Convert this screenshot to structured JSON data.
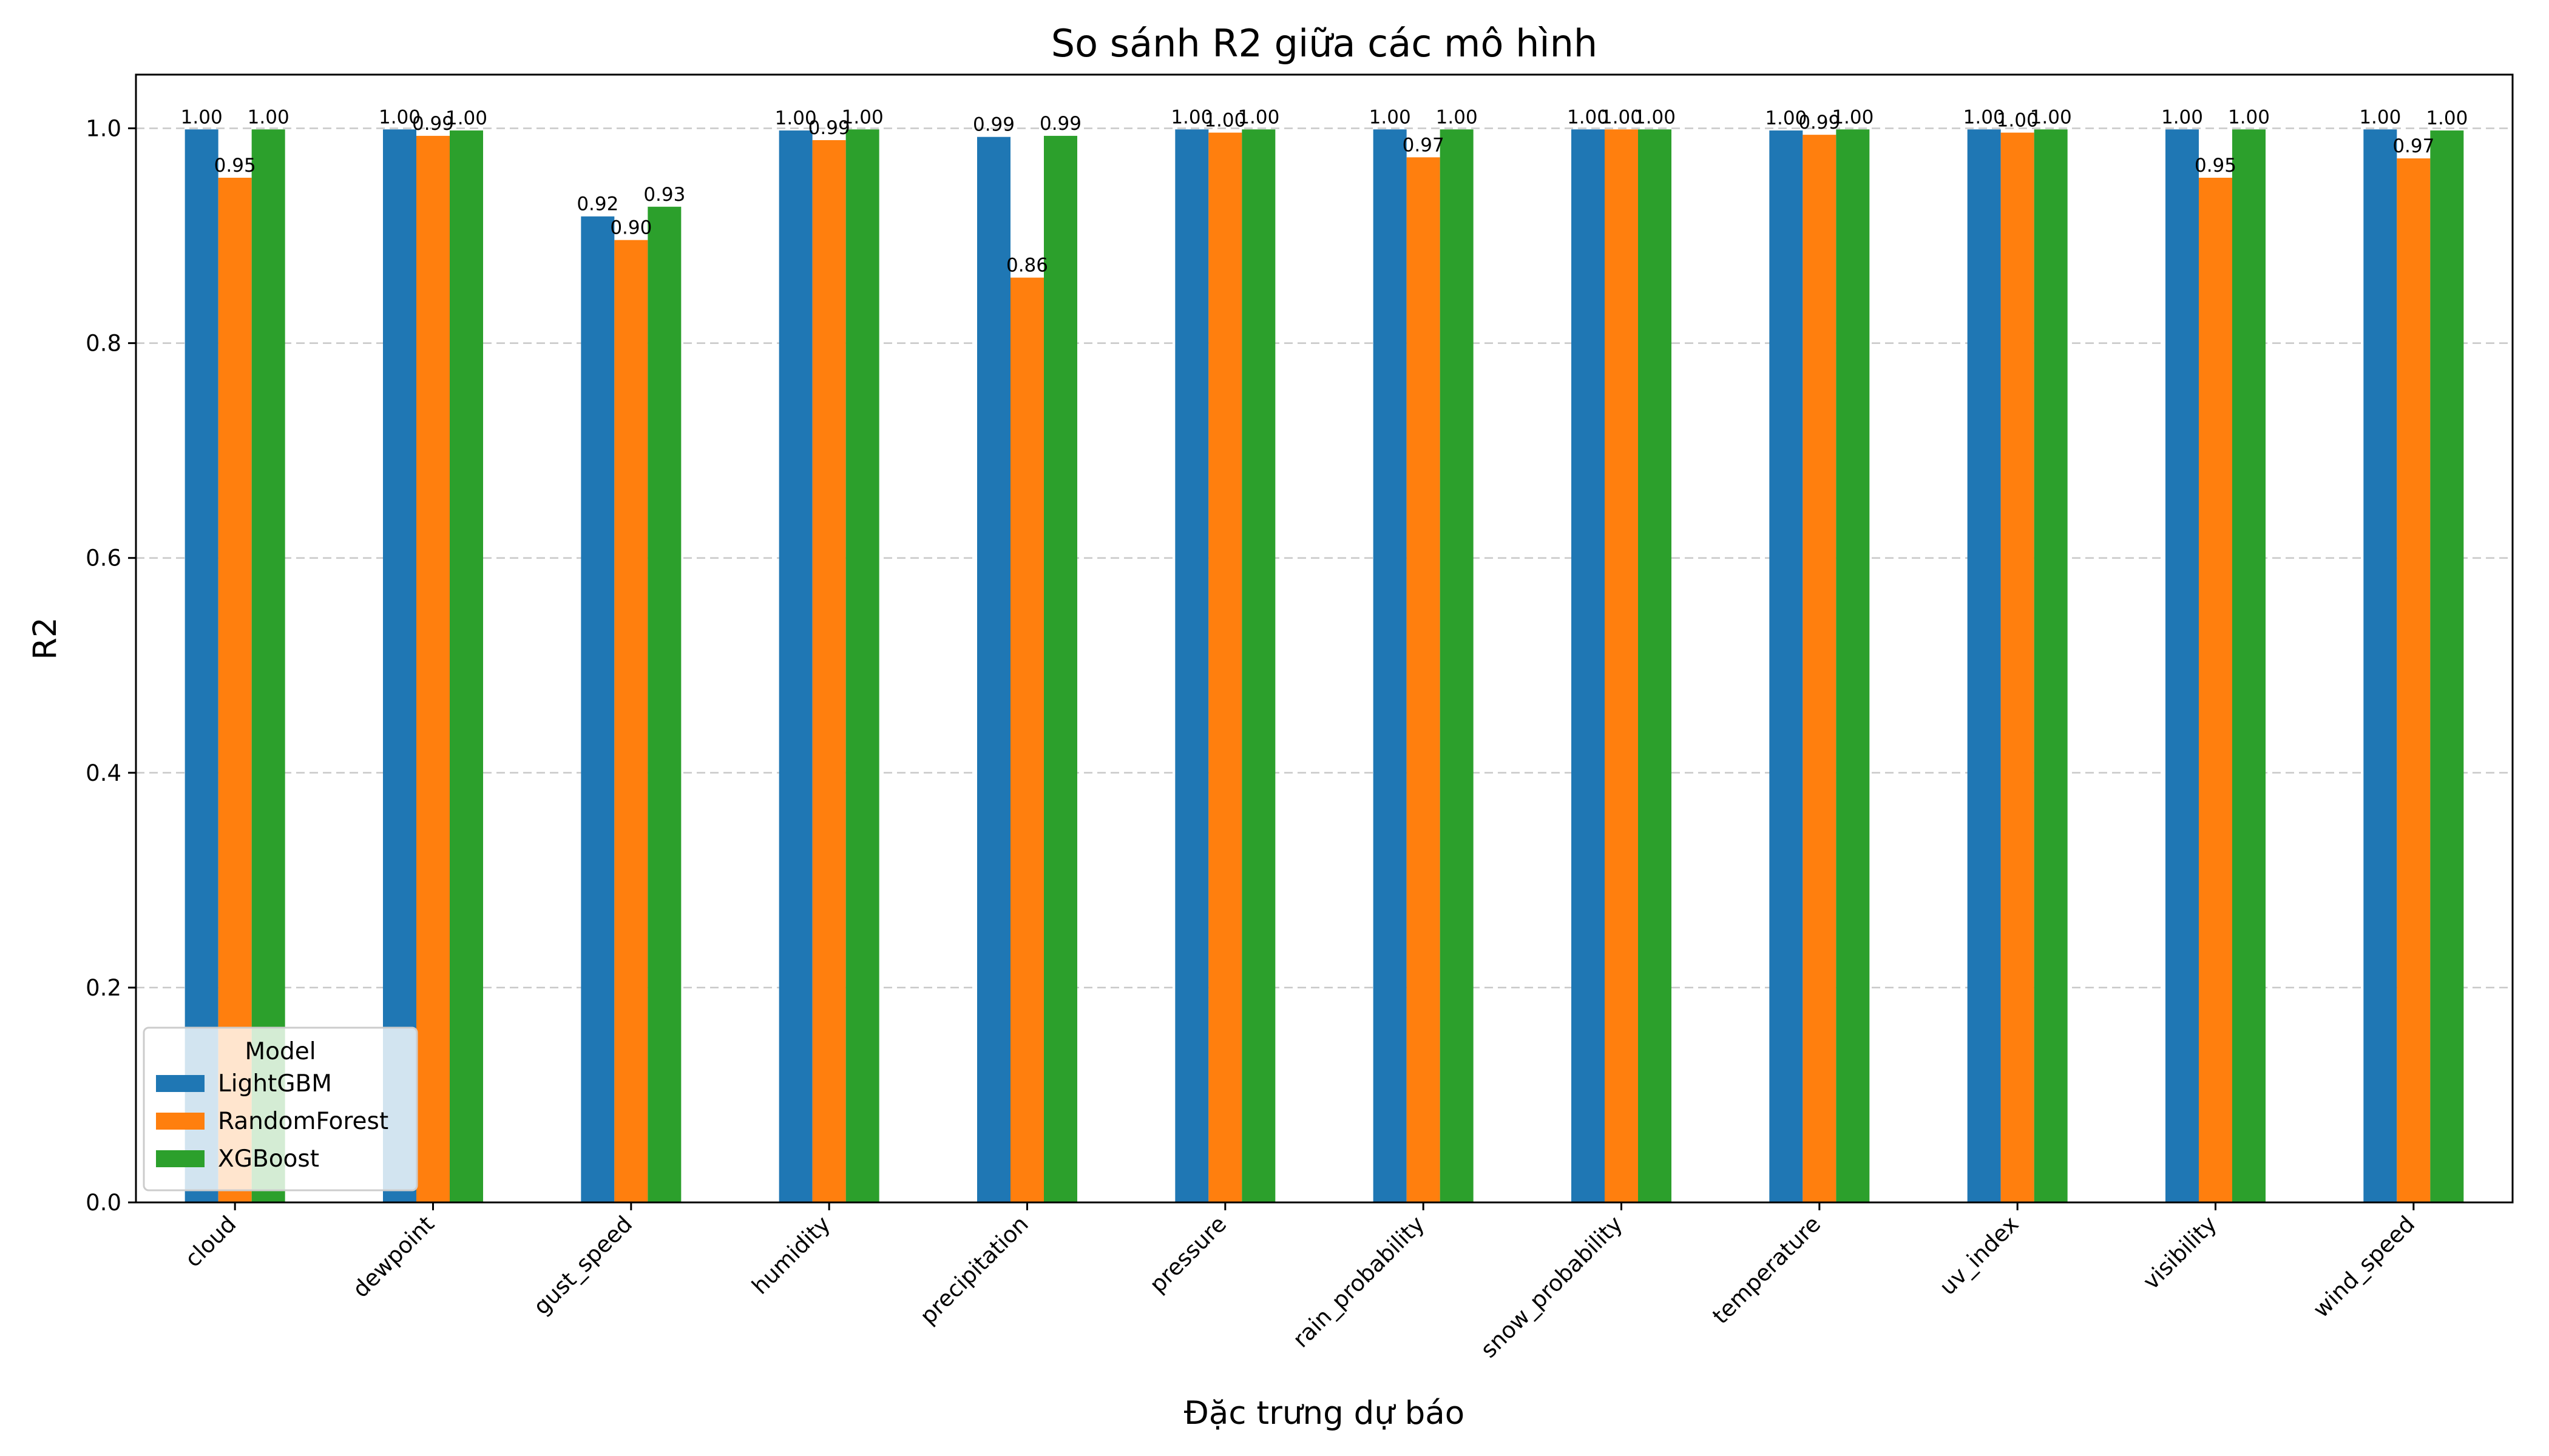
{
  "chart_data": {
    "type": "bar",
    "title": "So sánh R2 giữa các mô hình",
    "xlabel": "Đặc trưng dự báo",
    "ylabel": "R2",
    "ylim": [
      0,
      1.05
    ],
    "yticks": [
      "0.0",
      "0.2",
      "0.4",
      "0.6",
      "0.8",
      "1.0"
    ],
    "grid": "horizontal dashed",
    "legend_title": "Model",
    "legend_position": "lower-left",
    "categories": [
      "cloud",
      "dewpoint",
      "gust_speed",
      "humidity",
      "precipitation",
      "pressure",
      "rain_probability",
      "snow_probability",
      "temperature",
      "uv_index",
      "visibility",
      "wind_speed"
    ],
    "series": [
      {
        "name": "LightGBM",
        "color": "#1f77b4",
        "values": [
          0.999,
          0.999,
          0.918,
          0.998,
          0.992,
          0.999,
          0.999,
          0.999,
          0.998,
          0.999,
          0.999,
          0.999
        ],
        "labels": [
          "1.00",
          "1.00",
          "0.92",
          "1.00",
          "0.99",
          "1.00",
          "1.00",
          "1.00",
          "1.00",
          "1.00",
          "1.00",
          "1.00"
        ]
      },
      {
        "name": "RandomForest",
        "color": "#ff7f0e",
        "values": [
          0.954,
          0.993,
          0.896,
          0.989,
          0.861,
          0.996,
          0.973,
          0.999,
          0.994,
          0.996,
          0.954,
          0.972
        ],
        "labels": [
          "0.95",
          "0.99",
          "0.90",
          "0.99",
          "0.86",
          "1.00",
          "0.97",
          "1.00",
          "0.99",
          "1.00",
          "0.95",
          "0.97"
        ]
      },
      {
        "name": "XGBoost",
        "color": "#2ca02c",
        "values": [
          0.999,
          0.998,
          0.927,
          0.999,
          0.993,
          0.999,
          0.999,
          0.999,
          0.999,
          0.999,
          0.999,
          0.998
        ],
        "labels": [
          "1.00",
          "1.00",
          "0.93",
          "1.00",
          "0.99",
          "1.00",
          "1.00",
          "1.00",
          "1.00",
          "1.00",
          "1.00",
          "1.00"
        ]
      }
    ]
  }
}
